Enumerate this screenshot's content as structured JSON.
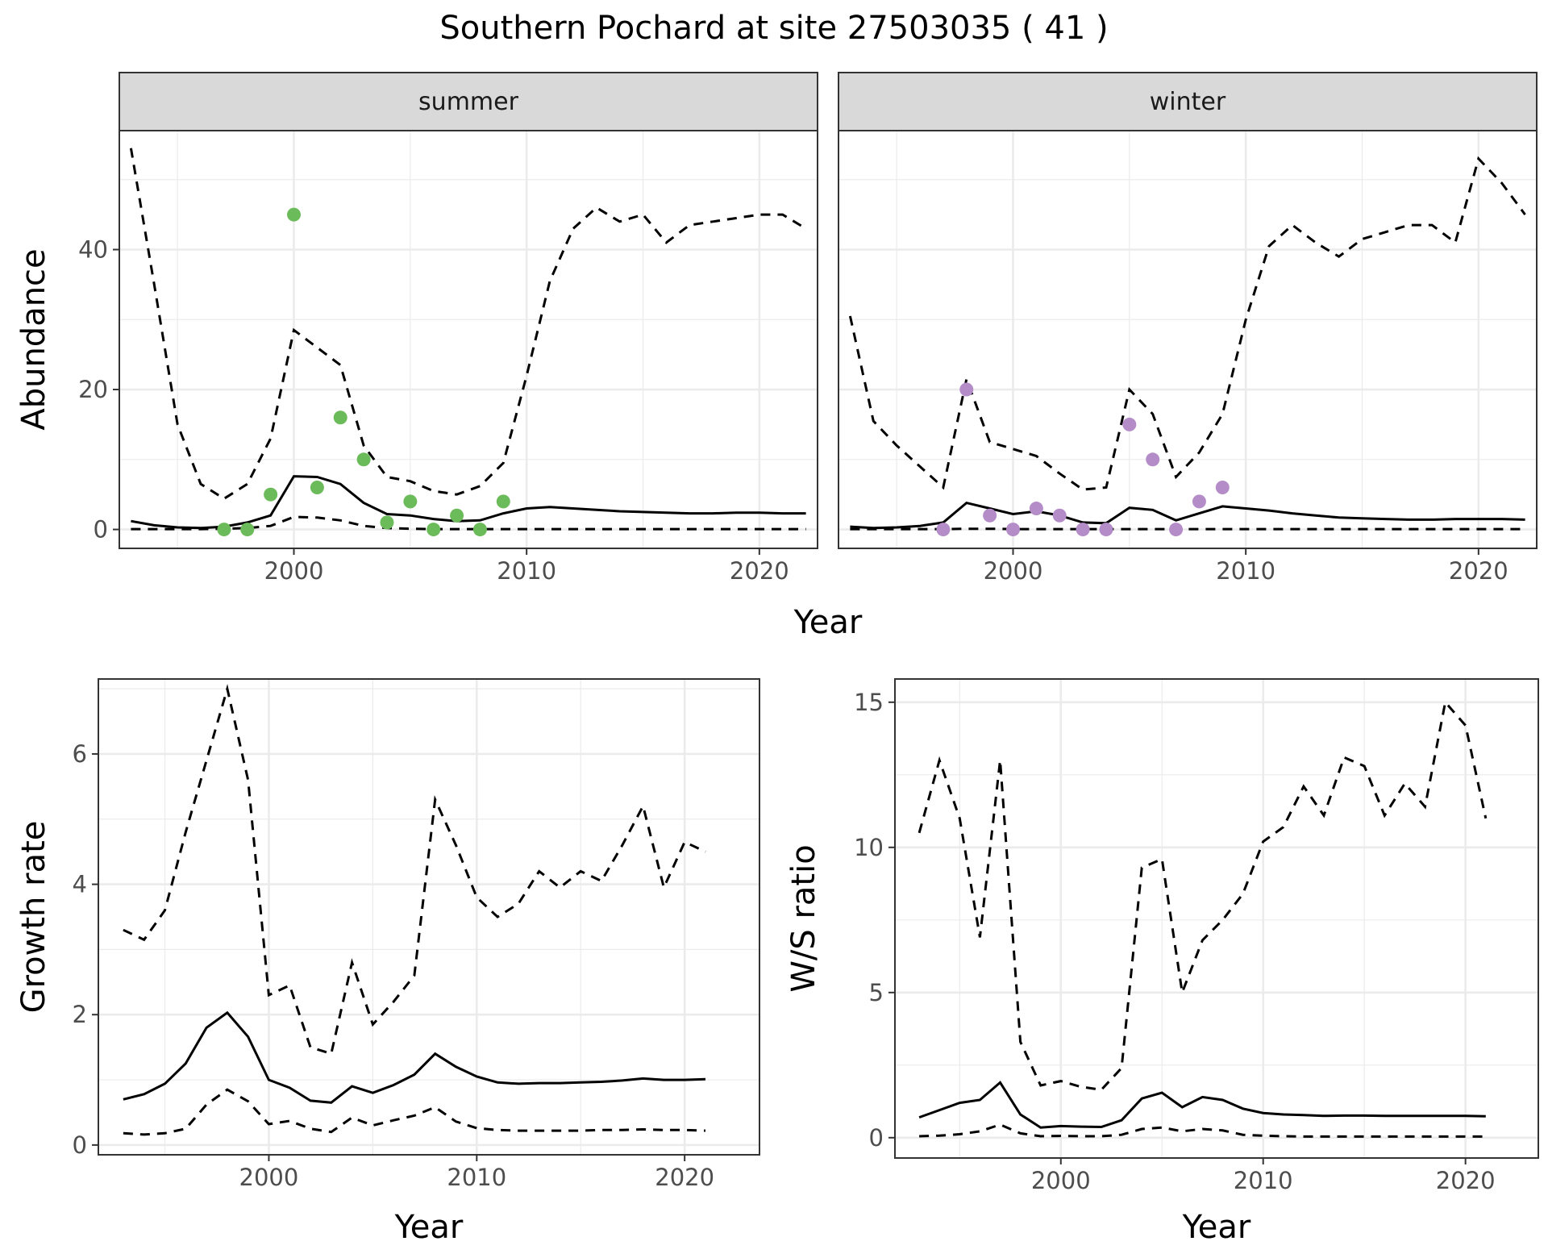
{
  "title": "Southern Pochard at site 27503035 ( 41 )",
  "colors": {
    "summer_points": "#6cbb5a",
    "winter_points": "#b48cc8",
    "line": "#000000",
    "strip_fill": "#d9d9d9",
    "grid": "#ebebeb"
  },
  "chart_data": [
    {
      "id": "abundance",
      "type": "line",
      "facets": [
        "summer",
        "winter"
      ],
      "xlabel": "Year",
      "ylabel": "Abundance",
      "xlim": [
        1992.5,
        2022.5
      ],
      "ylim": [
        -2.7,
        57
      ],
      "xticks": [
        2000,
        2010,
        2020
      ],
      "yticks": [
        0,
        20,
        40
      ],
      "grid": true,
      "panels": [
        {
          "facet": "summer",
          "point_color": "#6cbb5a",
          "x": [
            1993,
            1994,
            1995,
            1996,
            1997,
            1998,
            1999,
            2000,
            2001,
            2002,
            2003,
            2004,
            2005,
            2006,
            2007,
            2008,
            2009,
            2010,
            2011,
            2012,
            2013,
            2014,
            2015,
            2016,
            2017,
            2018,
            2019,
            2020,
            2021,
            2022
          ],
          "series": [
            {
              "style": "solid",
              "values": [
                1.2,
                0.6,
                0.3,
                0.2,
                0.4,
                1.0,
                2.0,
                7.6,
                7.5,
                6.5,
                3.8,
                2.2,
                2.0,
                1.5,
                1.2,
                1.3,
                2.3,
                3.0,
                3.2,
                3.0,
                2.8,
                2.6,
                2.5,
                2.4,
                2.3,
                2.3,
                2.4,
                2.4,
                2.3,
                2.3
              ]
            },
            {
              "style": "dashed",
              "values": [
                54.5,
                35,
                15,
                6.5,
                4.4,
                6.5,
                13,
                28.5,
                26,
                23.5,
                12,
                7.5,
                6.9,
                5.5,
                5,
                6.2,
                9.5,
                22,
                35.5,
                43,
                46,
                44,
                45,
                41,
                43.5,
                44,
                44.5,
                45,
                45,
                43
              ]
            },
            {
              "style": "dashed",
              "values": [
                0.05,
                0.05,
                0.05,
                0.05,
                0.1,
                0.2,
                0.5,
                1.8,
                1.7,
                1.3,
                0.5,
                0.2,
                0.1,
                0.05,
                0.05,
                0.05,
                0.05,
                0.05,
                0.05,
                0.05,
                0.05,
                0.05,
                0.05,
                0.05,
                0.05,
                0.05,
                0.05,
                0.05,
                0.05,
                0.05
              ]
            }
          ],
          "points": [
            [
              1997,
              0
            ],
            [
              1998,
              0
            ],
            [
              1999,
              5
            ],
            [
              2000,
              45
            ],
            [
              2001,
              6
            ],
            [
              2002,
              16
            ],
            [
              2003,
              10
            ],
            [
              2004,
              1
            ],
            [
              2005,
              4
            ],
            [
              2006,
              0
            ],
            [
              2007,
              2
            ],
            [
              2008,
              0
            ],
            [
              2009,
              4
            ]
          ]
        },
        {
          "facet": "winter",
          "point_color": "#b48cc8",
          "x": [
            1993,
            1994,
            1995,
            1996,
            1997,
            1998,
            1999,
            2000,
            2001,
            2002,
            2003,
            2004,
            2005,
            2006,
            2007,
            2008,
            2009,
            2010,
            2011,
            2012,
            2013,
            2014,
            2015,
            2016,
            2017,
            2018,
            2019,
            2020,
            2021,
            2022
          ],
          "series": [
            {
              "style": "solid",
              "values": [
                0.4,
                0.2,
                0.3,
                0.5,
                1.0,
                3.8,
                3.0,
                2.2,
                2.6,
                2.0,
                1.0,
                0.9,
                3.1,
                2.8,
                1.3,
                2.3,
                3.3,
                3.0,
                2.7,
                2.3,
                2.0,
                1.7,
                1.6,
                1.5,
                1.4,
                1.4,
                1.5,
                1.5,
                1.5,
                1.4
              ]
            },
            {
              "style": "dashed",
              "values": [
                30.5,
                15.5,
                12,
                9,
                6,
                21.5,
                12.5,
                11.5,
                10.5,
                8,
                5.7,
                6,
                20,
                16.5,
                7.5,
                11,
                16.5,
                30,
                40.5,
                43.5,
                41,
                39,
                41.5,
                42.5,
                43.5,
                43.5,
                41,
                53,
                49.5,
                45
              ]
            },
            {
              "style": "dashed",
              "values": [
                0.05,
                0.05,
                0.05,
                0.05,
                0.05,
                0.1,
                0.1,
                0.05,
                0.05,
                0.05,
                0.05,
                0.05,
                0.05,
                0.05,
                0.05,
                0.05,
                0.05,
                0.05,
                0.05,
                0.05,
                0.05,
                0.05,
                0.05,
                0.05,
                0.05,
                0.05,
                0.05,
                0.05,
                0.05,
                0.05
              ]
            }
          ],
          "points": [
            [
              1997,
              0
            ],
            [
              1998,
              20
            ],
            [
              1999,
              2
            ],
            [
              2000,
              0
            ],
            [
              2001,
              3
            ],
            [
              2002,
              2
            ],
            [
              2003,
              0
            ],
            [
              2004,
              0
            ],
            [
              2005,
              15
            ],
            [
              2006,
              10
            ],
            [
              2007,
              0
            ],
            [
              2008,
              4
            ],
            [
              2009,
              6
            ]
          ]
        }
      ]
    },
    {
      "id": "growth",
      "type": "line",
      "xlabel": "Year",
      "ylabel": "Growth rate",
      "xlim": [
        1991.8,
        2023.6
      ],
      "ylim": [
        -0.15,
        7.15
      ],
      "xticks": [
        2000,
        2010,
        2020
      ],
      "yticks": [
        0,
        2,
        4,
        6
      ],
      "grid": true,
      "x": [
        1993,
        1994,
        1995,
        1996,
        1997,
        1998,
        1999,
        2000,
        2001,
        2002,
        2003,
        2004,
        2005,
        2006,
        2007,
        2008,
        2009,
        2010,
        2011,
        2012,
        2013,
        2014,
        2015,
        2016,
        2017,
        2018,
        2019,
        2020,
        2021
      ],
      "series": [
        {
          "style": "solid",
          "values": [
            0.7,
            0.78,
            0.94,
            1.25,
            1.8,
            2.03,
            1.66,
            1.0,
            0.88,
            0.68,
            0.65,
            0.9,
            0.8,
            0.92,
            1.08,
            1.4,
            1.2,
            1.05,
            0.96,
            0.94,
            0.95,
            0.95,
            0.96,
            0.97,
            0.99,
            1.02,
            1.0,
            1.0,
            1.01
          ]
        },
        {
          "style": "dashed",
          "values": [
            3.3,
            3.15,
            3.6,
            4.8,
            5.9,
            7.0,
            5.6,
            2.3,
            2.45,
            1.5,
            1.4,
            2.8,
            1.85,
            2.2,
            2.6,
            5.3,
            4.6,
            3.8,
            3.5,
            3.7,
            4.2,
            3.95,
            4.2,
            4.05,
            4.6,
            5.2,
            3.95,
            4.65,
            4.5
          ]
        },
        {
          "style": "dashed",
          "values": [
            0.18,
            0.16,
            0.18,
            0.25,
            0.62,
            0.85,
            0.67,
            0.32,
            0.37,
            0.25,
            0.2,
            0.42,
            0.3,
            0.38,
            0.45,
            0.58,
            0.36,
            0.26,
            0.23,
            0.22,
            0.22,
            0.22,
            0.22,
            0.23,
            0.23,
            0.24,
            0.23,
            0.23,
            0.22
          ]
        }
      ]
    },
    {
      "id": "ws_ratio",
      "type": "line",
      "xlabel": "Year",
      "ylabel": "W/S ratio",
      "xlim": [
        1991.8,
        2023.6
      ],
      "ylim": [
        -0.7,
        15.8
      ],
      "xticks": [
        2000,
        2010,
        2020
      ],
      "yticks": [
        0,
        5,
        10,
        15
      ],
      "grid": true,
      "x": [
        1993,
        1994,
        1995,
        1996,
        1997,
        1998,
        1999,
        2000,
        2001,
        2002,
        2003,
        2004,
        2005,
        2006,
        2007,
        2008,
        2009,
        2010,
        2011,
        2012,
        2013,
        2014,
        2015,
        2016,
        2017,
        2018,
        2019,
        2020,
        2021
      ],
      "series": [
        {
          "style": "solid",
          "values": [
            0.7,
            0.95,
            1.2,
            1.3,
            1.9,
            0.8,
            0.35,
            0.4,
            0.38,
            0.37,
            0.6,
            1.35,
            1.55,
            1.05,
            1.4,
            1.3,
            1.0,
            0.85,
            0.8,
            0.78,
            0.75,
            0.76,
            0.76,
            0.75,
            0.75,
            0.75,
            0.75,
            0.75,
            0.74
          ]
        },
        {
          "style": "dashed",
          "values": [
            10.5,
            13,
            11,
            6.9,
            13,
            3.3,
            1.8,
            1.95,
            1.75,
            1.65,
            2.4,
            9.3,
            9.6,
            5.0,
            6.8,
            7.5,
            8.4,
            10.2,
            10.7,
            12.1,
            11.1,
            13.1,
            12.8,
            11.1,
            12.2,
            11.4,
            15,
            14.2,
            11
          ]
        },
        {
          "style": "dashed",
          "values": [
            0.05,
            0.07,
            0.12,
            0.22,
            0.45,
            0.15,
            0.05,
            0.06,
            0.05,
            0.05,
            0.1,
            0.3,
            0.35,
            0.22,
            0.3,
            0.25,
            0.1,
            0.07,
            0.05,
            0.04,
            0.04,
            0.04,
            0.04,
            0.04,
            0.04,
            0.04,
            0.04,
            0.04,
            0.04
          ]
        }
      ]
    }
  ]
}
